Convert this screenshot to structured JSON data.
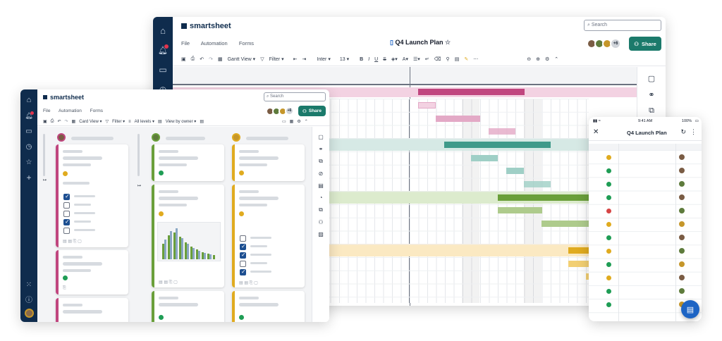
{
  "colors": {
    "nav": "#0f2c4d",
    "pink": "#c0467f",
    "pinkLight": "#f3d2e2",
    "pinkMid": "#e3a9c6",
    "teal": "#3f9a8a",
    "tealLight": "#d6e9e5",
    "tealMid": "#9fcfc6",
    "green": "#6a9f3a",
    "greenLight": "#dcebcd",
    "greenMid": "#aecb8c",
    "yellow": "#e0ab1f",
    "yellowLight": "#fbe9c2",
    "yellowMid": "#f2cf73",
    "share": "#1b7a6b",
    "fab": "#1d64c4"
  },
  "back_window": {
    "logo": "smartsheet",
    "menu": [
      "File",
      "Automation",
      "Forms"
    ],
    "title": "Q4 Launch Plan",
    "search_placeholder": "Search",
    "share_label": "Share",
    "collab_count": "+6",
    "toolbar": {
      "view": "Gantt View",
      "filter": "Filter",
      "font": "Inter",
      "size": "13"
    }
  },
  "front_window": {
    "logo": "smartsheet",
    "menu": [
      "File",
      "Automation",
      "Forms"
    ],
    "search_placeholder": "Search",
    "share_label": "Share",
    "collab_count": "+6",
    "toolbar": {
      "view": "Card View",
      "filter": "Filter",
      "levels": "All levels",
      "viewby": "View by owner"
    }
  },
  "mobile": {
    "time": "9:41 AM",
    "battery": "100%",
    "title": "Q4 Launch Plan"
  },
  "icons": [
    "home-icon",
    "bell-icon",
    "folder-icon",
    "clock-icon",
    "star-icon",
    "plus-icon",
    "apps-icon",
    "help-icon",
    "comment-icon",
    "link-icon",
    "attachment-icon",
    "refresh-icon",
    "close-icon",
    "more-icon",
    "chat-icon"
  ]
}
